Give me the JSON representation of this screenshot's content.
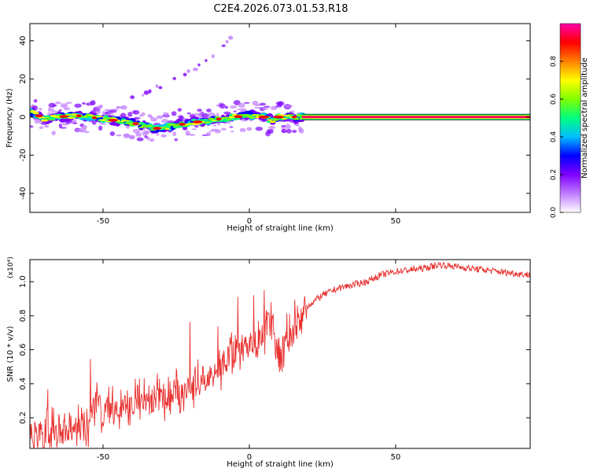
{
  "title": "C2E4.2026.073.01.53.R18",
  "chart_data": [
    {
      "type": "heatmap",
      "title": "C2E4.2026.073.01.53.R18",
      "xlabel": "Height of straight line (km)",
      "ylabel": "Frequency (Hz)",
      "xlim": [
        -75,
        96
      ],
      "ylim": [
        -50,
        49
      ],
      "xticks": [
        -50,
        0,
        50
      ],
      "yticks": [
        -40,
        -20,
        0,
        20,
        40
      ],
      "ridge": {
        "x": [
          -75,
          -70,
          -65,
          -60,
          -55,
          -50,
          -45,
          -40,
          -35,
          -32,
          -28,
          -24,
          -20,
          -15,
          -10,
          -5,
          0,
          5,
          8,
          10,
          15,
          18
        ],
        "freq": [
          3,
          -1,
          0,
          1,
          0,
          -1,
          -2,
          -3,
          -5,
          -6,
          -5,
          -4,
          -3,
          -2,
          -1,
          0,
          1,
          0,
          -2,
          0,
          0,
          0
        ]
      },
      "steady_line": {
        "x_start": 18,
        "x_end": 96,
        "freq": 0
      },
      "harmonic": {
        "x": [
          -40,
          -32,
          -24,
          -18,
          -12,
          -8,
          -6
        ],
        "freq": [
          10,
          15,
          21,
          26,
          32,
          38,
          43
        ]
      },
      "colorbar": {
        "label": "Normalized spectral amplitude",
        "range": [
          0,
          1
        ],
        "ticks": [
          0.0,
          0.2,
          0.4,
          0.6,
          0.8
        ],
        "colors": [
          "#ffffff",
          "#c07cff",
          "#7f00ff",
          "#0000ff",
          "#00bfff",
          "#00ff80",
          "#80ff00",
          "#ffff00",
          "#ff8000",
          "#ff0000",
          "#ff00aa"
        ]
      }
    },
    {
      "type": "line",
      "xlabel": "Height of straight line (km)",
      "ylabel": "SNR (10 * v/v)",
      "y_multiplier": "(x10⁴)",
      "xlim": [
        -75,
        96
      ],
      "ylim": [
        0.02,
        1.13
      ],
      "xticks": [
        -50,
        0,
        50
      ],
      "yticks": [
        0.2,
        0.4,
        0.6,
        0.8,
        1.0
      ],
      "line_color": "#e8312f",
      "series": [
        {
          "x": [
            -75,
            -70,
            -65,
            -60,
            -55,
            -52,
            -50,
            -45,
            -40,
            -35,
            -30,
            -25,
            -20,
            -15,
            -12,
            -10,
            -5,
            0,
            3,
            5,
            7,
            8,
            9,
            10,
            15,
            20,
            25,
            30,
            35,
            40,
            45,
            50,
            55,
            60,
            65,
            70,
            75,
            80,
            85,
            90,
            96
          ],
          "values": [
            0.1,
            0.1,
            0.12,
            0.15,
            0.18,
            0.3,
            0.24,
            0.25,
            0.28,
            0.3,
            0.32,
            0.34,
            0.38,
            0.42,
            0.48,
            0.52,
            0.58,
            0.64,
            0.66,
            0.7,
            0.78,
            0.74,
            0.62,
            0.56,
            0.72,
            0.86,
            0.92,
            0.96,
            0.98,
            1.0,
            1.04,
            1.06,
            1.07,
            1.08,
            1.1,
            1.09,
            1.08,
            1.07,
            1.06,
            1.05,
            1.04
          ]
        }
      ]
    }
  ]
}
